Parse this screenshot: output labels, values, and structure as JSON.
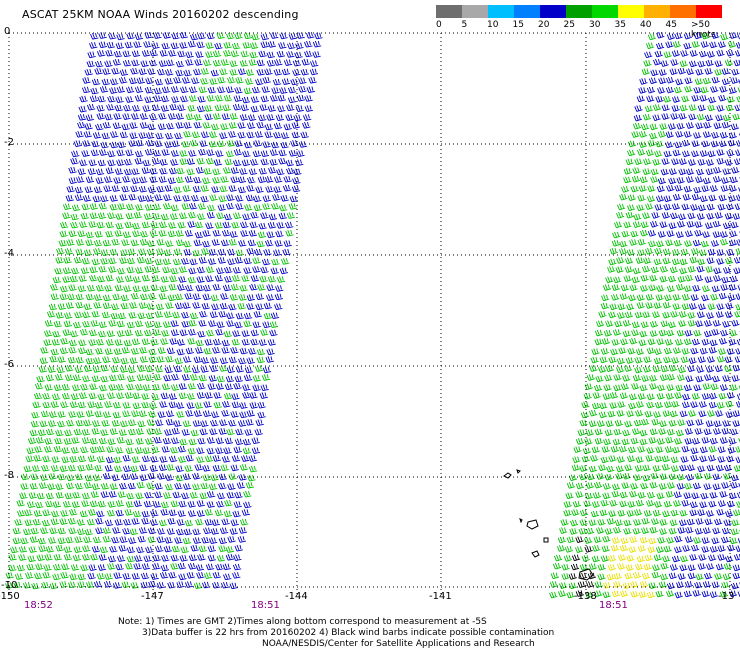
{
  "title": "ASCAT 25KM NOAA Winds 20160202 descending",
  "legend": {
    "colors": [
      "#6e6e6e",
      "#a8a8a8",
      "#00bfff",
      "#0080ff",
      "#0000c8",
      "#00a000",
      "#00d800",
      "#ffff00",
      "#ffb000",
      "#ff7000",
      "#ff0000",
      "#c00000",
      "#804000",
      "#e8c0a0",
      "#ff00ff",
      "#a000c0",
      "#400080",
      "#400060"
    ],
    "labels": [
      "0",
      "5",
      "10",
      "15",
      "20",
      "25",
      "30",
      "35",
      "40",
      "45",
      ">50 knots"
    ]
  },
  "map": {
    "lat_labels": [
      "0",
      "-2",
      "-4",
      "-6",
      "-8",
      "-10"
    ],
    "lon_labels": [
      "-150",
      "-147",
      "-144",
      "-141",
      "-138",
      "-13"
    ],
    "times": [
      "18:52",
      "18:51",
      "18:51"
    ]
  },
  "notes": [
    "Note: 1) Times are GMT 2)Times along bottom correspond to measurement at -5S",
    "3)Data buffer is 22 hrs from 20160202 4) Black wind barbs indicate possible contamination",
    "NOAA/NESDIS/Center for Satellite Applications and Research"
  ],
  "colors": {
    "barb_blue": "#0000c8",
    "barb_green": "#00c000",
    "barb_yellow": "#e8e000",
    "barb_black": "#000000",
    "time_color": "#800080"
  }
}
